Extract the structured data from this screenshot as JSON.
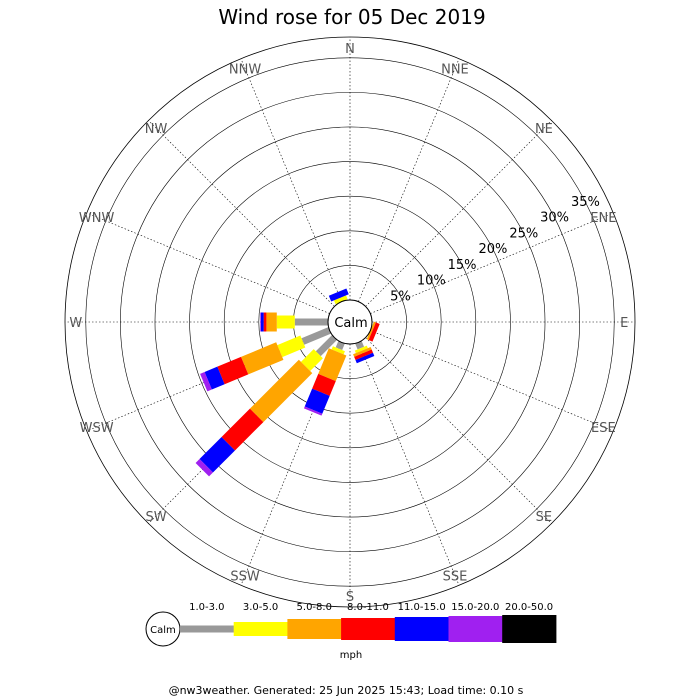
{
  "chart_data": {
    "type": "windrose",
    "title": "Wind rose for 05 Dec 2019",
    "unit": "mph",
    "calm_label": "Calm",
    "directions": [
      "N",
      "NNE",
      "NE",
      "ENE",
      "E",
      "ESE",
      "SE",
      "SSE",
      "S",
      "SSW",
      "SW",
      "WSW",
      "W",
      "WNW",
      "NW",
      "NNW"
    ],
    "rings": [
      5,
      10,
      15,
      20,
      25,
      30,
      35
    ],
    "ring_labels": [
      "5%",
      "10%",
      "15%",
      "20%",
      "25%",
      "30%",
      "35%"
    ],
    "max_percent": 38,
    "bins": [
      {
        "label": "1.0-3.0",
        "color": "#999999"
      },
      {
        "label": "3.0-5.0",
        "color": "#ffff00"
      },
      {
        "label": "5.0-8.0",
        "color": "#ffa500"
      },
      {
        "label": "8.0-11.0",
        "color": "#ff0000"
      },
      {
        "label": "11.0-15.0",
        "color": "#0000ff"
      },
      {
        "label": "15.0-20.0",
        "color": "#a020f0"
      },
      {
        "label": "20.0-50.0",
        "color": "#000000"
      }
    ],
    "series": [
      {
        "direction": "N",
        "values": [
          0,
          0,
          0,
          0,
          0,
          0,
          0
        ]
      },
      {
        "direction": "NNE",
        "values": [
          0,
          0,
          0,
          0,
          0,
          0,
          0
        ]
      },
      {
        "direction": "NE",
        "values": [
          0,
          0,
          0,
          0,
          0,
          0,
          0
        ]
      },
      {
        "direction": "ENE",
        "values": [
          0,
          0,
          0,
          0,
          0,
          0,
          0
        ]
      },
      {
        "direction": "E",
        "values": [
          0,
          0,
          0,
          0,
          0,
          0,
          0
        ]
      },
      {
        "direction": "ESE",
        "values": [
          0,
          0,
          0.3,
          0.6,
          0,
          0,
          0
        ]
      },
      {
        "direction": "SE",
        "values": [
          0,
          0,
          0,
          0,
          0,
          0,
          0
        ]
      },
      {
        "direction": "SSE",
        "values": [
          0.9,
          0.4,
          0.4,
          0.5,
          0.5,
          0,
          0
        ]
      },
      {
        "direction": "S",
        "values": [
          0,
          0,
          0,
          0,
          0,
          0,
          0
        ]
      },
      {
        "direction": "SSW",
        "values": [
          1.0,
          0.5,
          4.0,
          2.3,
          2.8,
          0.3,
          0
        ]
      },
      {
        "direction": "SW",
        "values": [
          3.3,
          2.6,
          10.0,
          5.8,
          4.5,
          0.8,
          0
        ]
      },
      {
        "direction": "WSW",
        "values": [
          4.2,
          3.6,
          5.5,
          3.7,
          2.0,
          0.7,
          0
        ]
      },
      {
        "direction": "W",
        "values": [
          4.8,
          2.6,
          1.5,
          0.4,
          0.4,
          0.1,
          0
        ]
      },
      {
        "direction": "WNW",
        "values": [
          0,
          0,
          0,
          0,
          0,
          0,
          0
        ]
      },
      {
        "direction": "NW",
        "values": [
          0,
          0,
          0,
          0,
          0,
          0,
          0
        ]
      },
      {
        "direction": "NNW",
        "values": [
          0,
          0.6,
          0,
          0,
          0.9,
          0,
          0
        ]
      }
    ]
  },
  "footer": "@nw3weather. Generated: 25 Jun 2025 15:43; Load time: 0.10 s"
}
